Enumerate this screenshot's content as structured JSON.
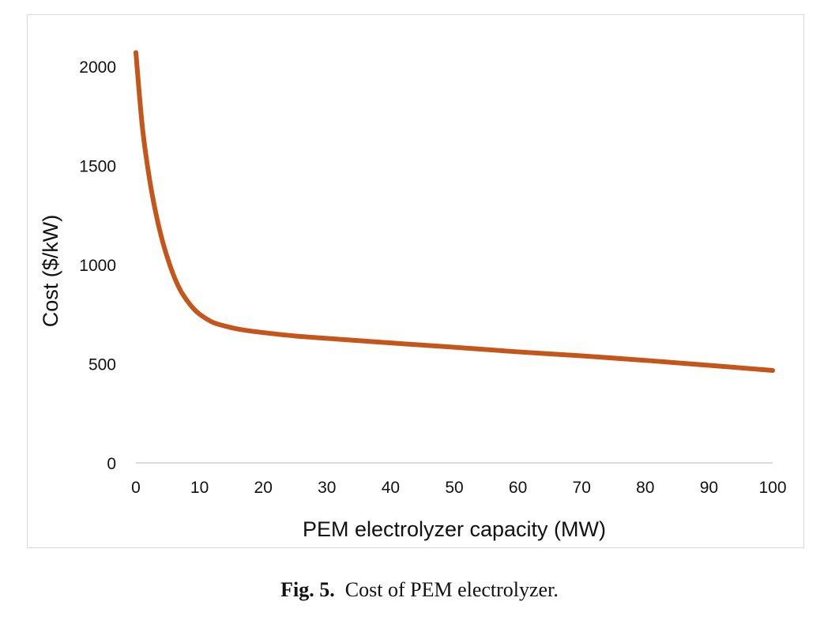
{
  "chart_data": {
    "type": "line",
    "title": "",
    "xlabel": "PEM electrolyzer capacity (MW)",
    "ylabel": "Cost ($/kW)",
    "xlim": [
      0,
      100
    ],
    "ylim": [
      0,
      2000
    ],
    "xticks": [
      0,
      10,
      20,
      30,
      40,
      50,
      60,
      70,
      80,
      90,
      100
    ],
    "yticks": [
      0,
      500,
      1000,
      1500,
      2000
    ],
    "grid": false,
    "legend": "none",
    "series": [
      {
        "color": "#c5561b",
        "x": [
          0,
          1,
          2,
          3,
          4,
          5,
          6,
          7,
          8,
          9,
          10,
          12,
          14,
          16,
          18,
          20,
          25,
          30,
          40,
          50,
          60,
          70,
          80,
          90,
          100
        ],
        "y": [
          2070,
          1700,
          1460,
          1280,
          1140,
          1030,
          940,
          870,
          820,
          780,
          750,
          710,
          690,
          675,
          665,
          657,
          640,
          628,
          605,
          583,
          560,
          540,
          517,
          492,
          466
        ]
      }
    ]
  },
  "caption": {
    "label": "Fig. 5.",
    "text": "Cost of PEM electrolyzer."
  }
}
